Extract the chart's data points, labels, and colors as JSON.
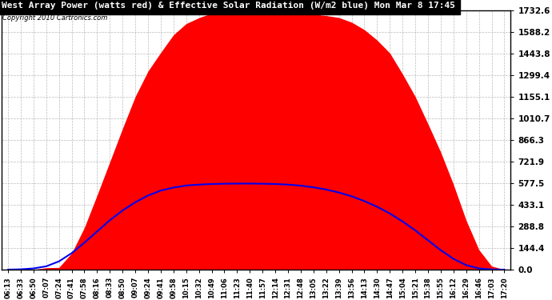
{
  "title": "West Array Power (watts red) & Effective Solar Radiation (W/m2 blue) Mon Mar 8 17:45",
  "copyright": "Copyright 2010 Cartronics.com",
  "ymax": 1732.6,
  "yticks": [
    0.0,
    144.4,
    288.8,
    433.1,
    577.5,
    721.9,
    866.3,
    1010.7,
    1155.1,
    1299.4,
    1443.8,
    1588.2,
    1732.6
  ],
  "xtick_labels": [
    "06:13",
    "06:33",
    "06:50",
    "07:07",
    "07:24",
    "07:41",
    "07:58",
    "08:16",
    "08:33",
    "08:50",
    "09:07",
    "09:24",
    "09:41",
    "09:58",
    "10:15",
    "10:32",
    "10:49",
    "11:06",
    "11:23",
    "11:40",
    "11:57",
    "12:14",
    "12:31",
    "12:48",
    "13:05",
    "13:22",
    "13:39",
    "13:56",
    "14:13",
    "14:30",
    "14:47",
    "15:04",
    "15:21",
    "15:38",
    "15:55",
    "16:12",
    "16:29",
    "16:46",
    "17:03",
    "17:20"
  ],
  "bg_color": "#ffffff",
  "grid_color": "#bbbbbb",
  "title_bg_color": "#000000",
  "title_text_color": "#ffffff",
  "red_fill_color": "#ff0000",
  "blue_line_color": "#0000ee",
  "border_color": "#000000",
  "power_values": [
    0,
    0,
    0,
    5,
    30,
    120,
    280,
    500,
    720,
    950,
    1150,
    1320,
    1450,
    1560,
    1640,
    1690,
    1710,
    1720,
    1728,
    1732,
    1730,
    1725,
    1718,
    1715,
    1710,
    1700,
    1680,
    1650,
    1600,
    1530,
    1430,
    1310,
    1160,
    980,
    780,
    560,
    330,
    140,
    30,
    0
  ],
  "radiation_values": [
    0,
    2,
    8,
    22,
    55,
    110,
    180,
    255,
    330,
    395,
    450,
    495,
    528,
    548,
    562,
    568,
    572,
    574,
    575,
    575,
    574,
    572,
    568,
    561,
    550,
    535,
    515,
    490,
    458,
    420,
    375,
    322,
    262,
    196,
    130,
    72,
    30,
    8,
    1,
    0
  ]
}
